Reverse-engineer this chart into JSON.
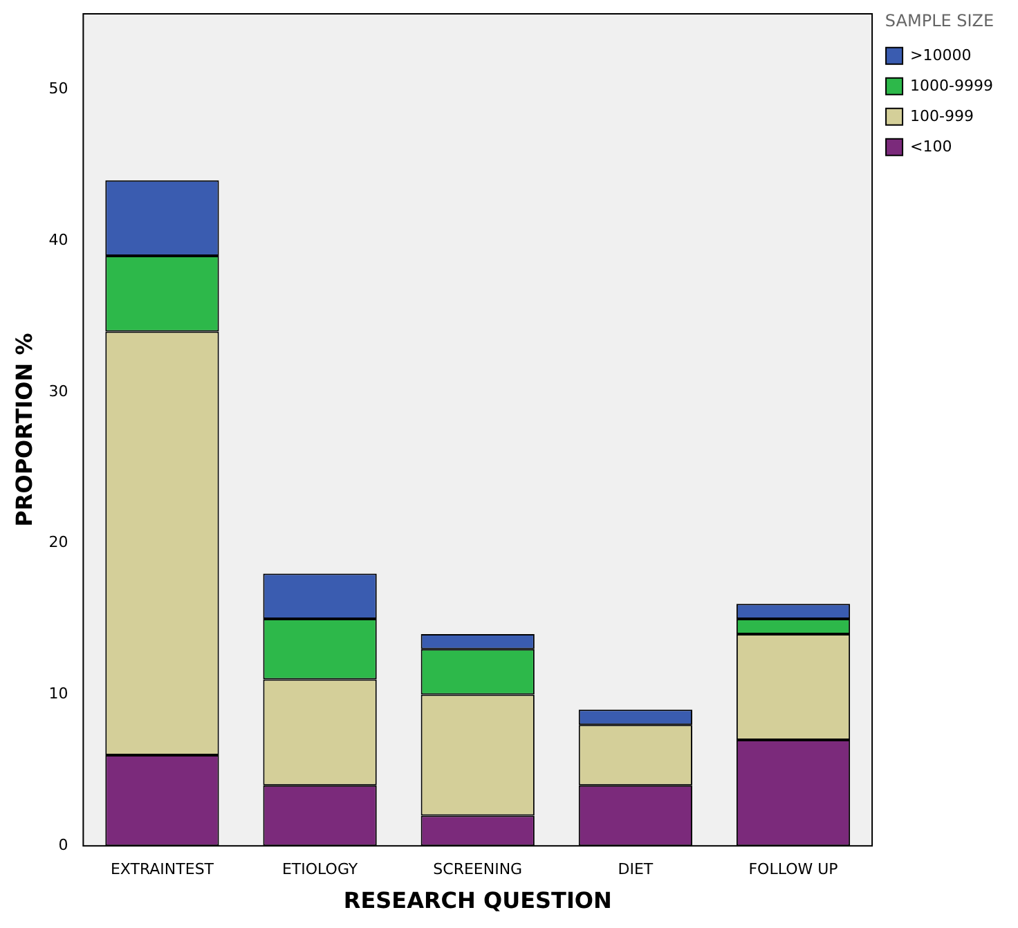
{
  "chart_data": {
    "type": "bar",
    "stacked": true,
    "xlabel": "RESEARCH QUESTION",
    "ylabel": "PROPORTION %",
    "legend_title": "SAMPLE SIZE",
    "legend": "top right",
    "grid": false,
    "categories": [
      "EXTRAINTEST",
      "ETIOLOGY",
      "SCREENING",
      "DIET",
      "FOLLOW UP"
    ],
    "series": [
      {
        "name": "<100",
        "color": "#7b2a7b",
        "values": [
          6,
          4,
          2,
          4,
          7
        ]
      },
      {
        "name": "100-999",
        "color": "#d4cf99",
        "values": [
          28,
          7,
          8,
          4,
          7
        ]
      },
      {
        "name": "1000-9999",
        "color": "#2db84a",
        "values": [
          5,
          4,
          3,
          0,
          1
        ]
      },
      {
        "name": ">10000",
        "color": "#3a5cb0",
        "values": [
          5,
          3,
          1,
          1,
          1
        ]
      }
    ],
    "ylim": [
      0,
      55
    ],
    "yticks": [
      0,
      10,
      20,
      30,
      40,
      50
    ]
  }
}
